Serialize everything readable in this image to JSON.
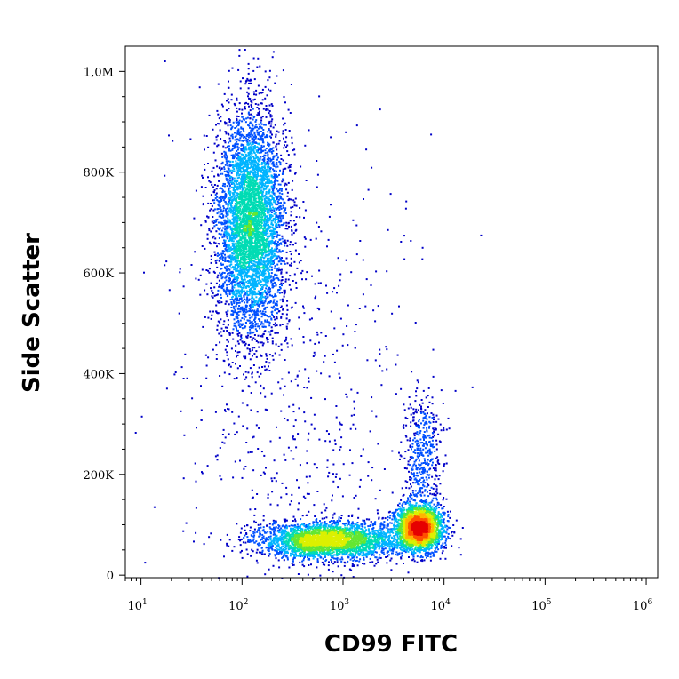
{
  "chart_data": {
    "type": "scatter",
    "subtype": "flow-cytometry-density-dot-plot",
    "title": "",
    "xlabel": "CD99 FITC",
    "ylabel": "Side Scatter",
    "x_scale": "log",
    "xlim": [
      7,
      1300000
    ],
    "ylim": [
      -5000,
      1050000
    ],
    "x_ticks": [
      {
        "value": 10,
        "base": "10",
        "exp": "1"
      },
      {
        "value": 100,
        "base": "10",
        "exp": "2"
      },
      {
        "value": 1000,
        "base": "10",
        "exp": "3"
      },
      {
        "value": 10000,
        "base": "10",
        "exp": "4"
      },
      {
        "value": 100000,
        "base": "10",
        "exp": "5"
      },
      {
        "value": 1000000,
        "base": "10",
        "exp": "6"
      }
    ],
    "y_ticks": [
      {
        "value": 0,
        "label": "0"
      },
      {
        "value": 200000,
        "label": "200K"
      },
      {
        "value": 400000,
        "label": "400K"
      },
      {
        "value": 600000,
        "label": "600K"
      },
      {
        "value": 800000,
        "label": "800K"
      },
      {
        "value": 1000000,
        "label": "1,0M"
      }
    ],
    "grid": false,
    "legend": "none",
    "colormap": [
      "#0000c8",
      "#0050ff",
      "#00b4ff",
      "#00dcb4",
      "#64e632",
      "#dcf000",
      "#ffb400",
      "#ff5000",
      "#e60000"
    ],
    "populations": [
      {
        "x_center": 120,
        "x_spread_decades": 0.17,
        "y_center": 700000,
        "y_spread": 110000,
        "peak_density": "medium-high",
        "count": 5200
      },
      {
        "x_center": 5500,
        "x_spread_decades": 0.12,
        "y_center": 95000,
        "y_spread": 22000,
        "peak_density": "high",
        "count": 2600
      },
      {
        "x_center": 700,
        "x_spread_decades": 0.35,
        "y_center": 70000,
        "y_spread": 18000,
        "peak_density": "medium-high",
        "count": 3200
      },
      {
        "x_center": 6000,
        "x_spread_decades": 0.1,
        "y_center": 230000,
        "y_spread": 70000,
        "peak_density": "low",
        "count": 500
      },
      {
        "x_center": 300,
        "x_spread_decades": 0.6,
        "y_center": 350000,
        "y_spread": 250000,
        "peak_density": "low",
        "count": 700
      }
    ]
  }
}
